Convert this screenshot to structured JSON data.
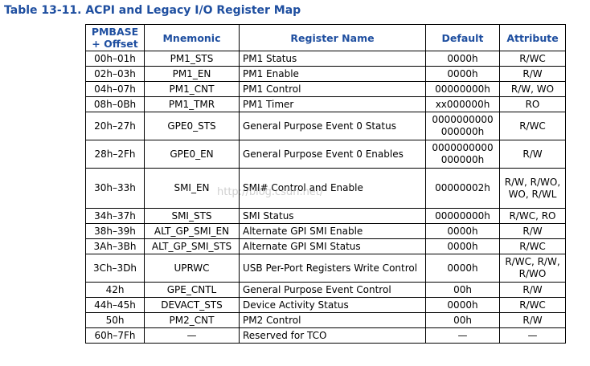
{
  "caption": "Table 13-11. ACPI and Legacy I/O Register Map",
  "headers": [
    "PMBASE + Offset",
    "Mnemonic",
    "Register Name",
    "Default",
    "Attribute"
  ],
  "rows": [
    {
      "offset": "00h–01h",
      "mnemonic": "PM1_STS",
      "name": "PM1 Status",
      "default": "0000h",
      "attr": "R/WC"
    },
    {
      "offset": "02h–03h",
      "mnemonic": "PM1_EN",
      "name": "PM1 Enable",
      "default": "0000h",
      "attr": "R/W"
    },
    {
      "offset": "04h–07h",
      "mnemonic": "PM1_CNT",
      "name": "PM1 Control",
      "default": "00000000h",
      "attr": "R/W, WO"
    },
    {
      "offset": "08h–0Bh",
      "mnemonic": "PM1_TMR",
      "name": "PM1 Timer",
      "default": "xx000000h",
      "attr": "RO"
    },
    {
      "offset": "20h–27h",
      "mnemonic": "GPE0_STS",
      "name": "General Purpose Event 0 Status",
      "default": "0000000000000000h",
      "attr": "R/WC"
    },
    {
      "offset": "28h–2Fh",
      "mnemonic": "GPE0_EN",
      "name": "General Purpose Event 0 Enables",
      "default": "0000000000000000h",
      "attr": "R/W"
    },
    {
      "offset": "30h–33h",
      "mnemonic": "SMI_EN",
      "name": "SMI# Control and Enable",
      "default": "00000002h",
      "attr": "R/W, R/WO, WO, R/WL"
    },
    {
      "offset": "34h–37h",
      "mnemonic": "SMI_STS",
      "name": "SMI Status",
      "default": "00000000h",
      "attr": "R/WC, RO"
    },
    {
      "offset": "38h–39h",
      "mnemonic": "ALT_GP_SMI_EN",
      "name": "Alternate GPI SMI Enable",
      "default": "0000h",
      "attr": "R/W"
    },
    {
      "offset": "3Ah–3Bh",
      "mnemonic": "ALT_GP_SMI_STS",
      "name": "Alternate GPI SMI Status",
      "default": "0000h",
      "attr": "R/WC"
    },
    {
      "offset": "3Ch–3Dh",
      "mnemonic": "UPRWC",
      "name": "USB Per-Port Registers Write Control",
      "default": "0000h",
      "attr": "R/WC, R/W, R/WO"
    },
    {
      "offset": "42h",
      "mnemonic": "GPE_CNTL",
      "name": "General Purpose Event Control",
      "default": "00h",
      "attr": "R/W"
    },
    {
      "offset": "44h–45h",
      "mnemonic": "DEVACT_STS",
      "name": "Device Activity Status",
      "default": "0000h",
      "attr": "R/WC"
    },
    {
      "offset": "50h",
      "mnemonic": "PM2_CNT",
      "name": "PM2 Control",
      "default": "00h",
      "attr": "R/W"
    },
    {
      "offset": "60h–7Fh",
      "mnemonic": "—",
      "name": "Reserved for TCO",
      "default": "—",
      "attr": "—"
    }
  ],
  "watermark": "http://blog.csdn.net/"
}
